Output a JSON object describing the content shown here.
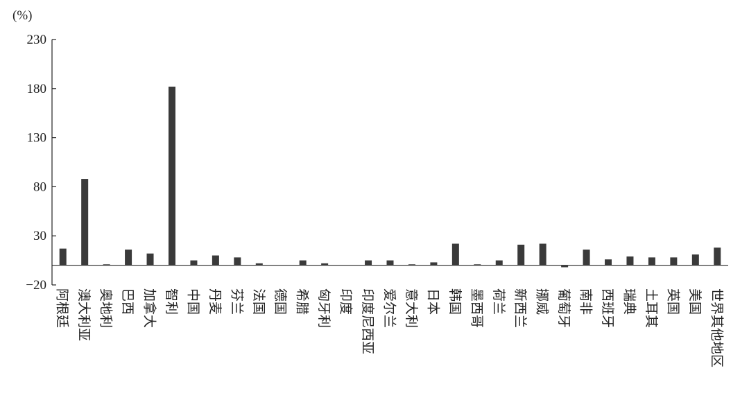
{
  "chart_data": {
    "type": "bar",
    "y_unit_label": "(%)",
    "categories": [
      "阿根廷",
      "澳大利亚",
      "奥地利",
      "巴西",
      "加拿大",
      "智利",
      "中国",
      "丹麦",
      "芬兰",
      "法国",
      "德国",
      "希腊",
      "匈牙利",
      "印度",
      "印度尼西亚",
      "爱尔兰",
      "意大利",
      "日本",
      "韩国",
      "墨西哥",
      "荷兰",
      "新西兰",
      "挪威",
      "葡萄牙",
      "南非",
      "西班牙",
      "瑞典",
      "土耳其",
      "英国",
      "美国",
      "世界其他地区"
    ],
    "values": [
      17,
      88,
      1,
      16,
      12,
      182,
      5,
      10,
      8,
      2,
      0,
      5,
      2,
      0,
      5,
      5,
      1,
      3,
      22,
      1,
      5,
      21,
      22,
      -2,
      16,
      6,
      9,
      8,
      8,
      11,
      18
    ],
    "color": "#3a3a3a",
    "ylim": [
      -20,
      230
    ],
    "yticks": [
      {
        "value": -20,
        "label": "−20"
      },
      30,
      80,
      130,
      180,
      230
    ],
    "grid": false
  }
}
